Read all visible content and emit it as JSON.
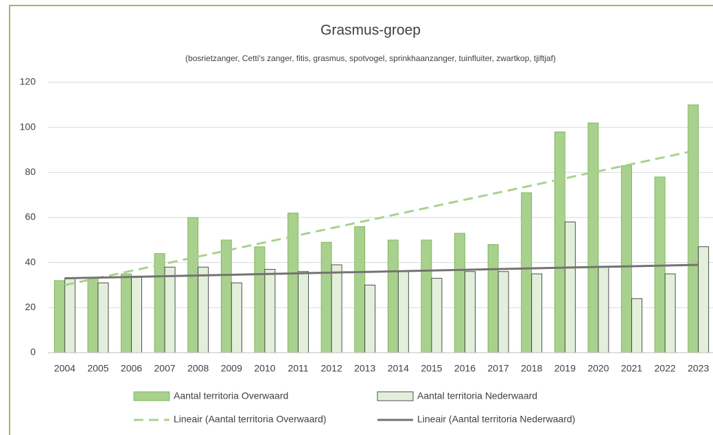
{
  "chart_data": {
    "type": "bar",
    "title": "Grasmus-groep",
    "subtitle": "(bosrietzanger, Cetti's zanger, fitis, grasmus, spotvogel, sprinkhaanzanger, tuinfluiter, zwartkop, tjiftjaf)",
    "categories": [
      "2004",
      "2005",
      "2006",
      "2007",
      "2008",
      "2009",
      "2010",
      "2011",
      "2012",
      "2013",
      "2014",
      "2015",
      "2016",
      "2017",
      "2018",
      "2019",
      "2020",
      "2021",
      "2022",
      "2023"
    ],
    "series": [
      {
        "name": "Aantal territoria Overwaard",
        "color": "#a9d18e",
        "values": [
          32,
          33,
          35,
          44,
          60,
          50,
          47,
          62,
          49,
          56,
          50,
          50,
          53,
          48,
          71,
          98,
          102,
          83,
          78,
          110
        ]
      },
      {
        "name": "Aantal territoria Nederwaard",
        "color": "#e2efda",
        "values": [
          33,
          31,
          34,
          38,
          38,
          31,
          37,
          36,
          39,
          30,
          36,
          33,
          36,
          36,
          35,
          58,
          38,
          24,
          35,
          47
        ]
      }
    ],
    "trendlines": [
      {
        "name": "Lineair (Aantal territoria Overwaard)",
        "color": "#a9d18e",
        "dashed": true,
        "values": [
          30,
          90
        ]
      },
      {
        "name": "Lineair (Aantal territoria Nederwaard)",
        "color": "#767171",
        "dashed": false,
        "values": [
          33,
          39
        ]
      }
    ],
    "ylim": [
      0,
      120
    ],
    "yticks": [
      0,
      20,
      40,
      60,
      80,
      100,
      120
    ],
    "grid": true
  }
}
